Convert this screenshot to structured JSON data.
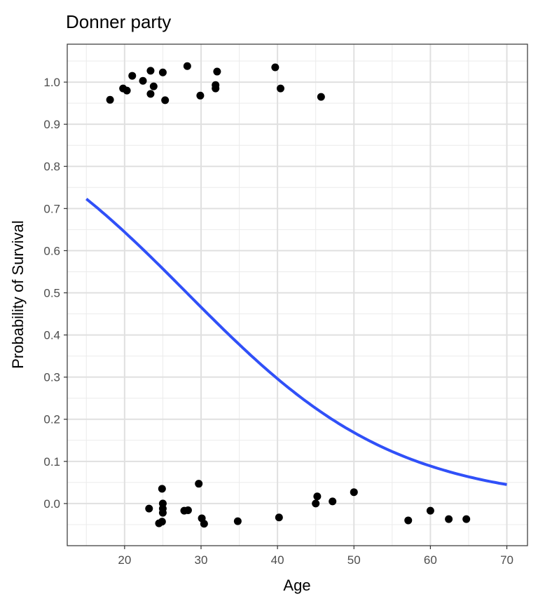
{
  "chart_data": {
    "type": "scatter",
    "title": "Donner party",
    "xlabel": "Age",
    "ylabel": "Probability of Survival",
    "xlim": [
      12.5,
      72.7
    ],
    "ylim": [
      -0.1,
      1.09
    ],
    "xticks": [
      "20",
      "30",
      "40",
      "50",
      "60",
      "70"
    ],
    "yticks": [
      "0.0",
      "0.1",
      "0.2",
      "0.3",
      "0.4",
      "0.5",
      "0.6",
      "0.7",
      "0.8",
      "0.9",
      "1.0"
    ],
    "grid": true,
    "points_color": "#000000",
    "curve_color": "#3050F8",
    "points": [
      [
        18.1,
        0.958
      ],
      [
        19.8,
        0.985
      ],
      [
        20.3,
        0.98
      ],
      [
        21.0,
        1.015
      ],
      [
        22.4,
        1.003
      ],
      [
        23.4,
        1.027
      ],
      [
        23.8,
        0.99
      ],
      [
        23.4,
        0.972
      ],
      [
        25.0,
        1.023
      ],
      [
        25.3,
        0.957
      ],
      [
        28.2,
        1.038
      ],
      [
        29.9,
        0.968
      ],
      [
        31.9,
        0.985
      ],
      [
        31.9,
        0.993
      ],
      [
        32.1,
        1.025
      ],
      [
        39.7,
        1.035
      ],
      [
        40.4,
        0.985
      ],
      [
        45.7,
        0.965
      ],
      [
        23.2,
        -0.012
      ],
      [
        24.5,
        -0.047
      ],
      [
        24.9,
        -0.043
      ],
      [
        24.9,
        0.035
      ],
      [
        25.0,
        0.0
      ],
      [
        25.0,
        -0.012
      ],
      [
        25.0,
        -0.022
      ],
      [
        27.8,
        -0.017
      ],
      [
        28.3,
        -0.016
      ],
      [
        29.7,
        0.047
      ],
      [
        30.1,
        -0.035
      ],
      [
        30.4,
        -0.048
      ],
      [
        34.8,
        -0.042
      ],
      [
        40.2,
        -0.033
      ],
      [
        45.0,
        0.0
      ],
      [
        45.2,
        0.017
      ],
      [
        47.2,
        0.005
      ],
      [
        50.0,
        0.027
      ],
      [
        57.1,
        -0.04
      ],
      [
        60.0,
        -0.017
      ],
      [
        62.4,
        -0.037
      ],
      [
        64.7,
        -0.037
      ]
    ],
    "fit": {
      "model": "logistic",
      "intercept": 2.054,
      "slope": -0.073,
      "x_range": [
        15,
        70
      ]
    }
  }
}
